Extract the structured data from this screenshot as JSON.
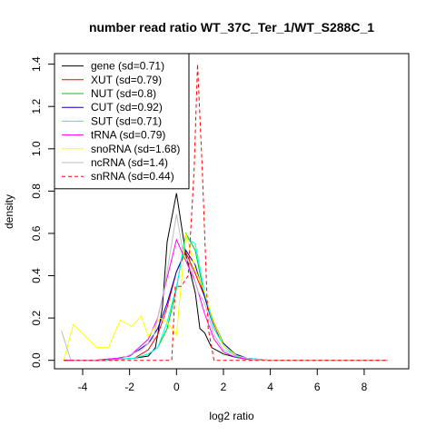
{
  "chart_data": {
    "type": "line",
    "title": "number read ratio WT_37C_Ter_1/WT_S288C_1",
    "xlabel": "log2 ratio",
    "ylabel": "density",
    "xlim": [
      -5.2,
      9.9
    ],
    "ylim": [
      -0.04,
      1.45
    ],
    "xticks": [
      -4,
      -2,
      0,
      2,
      4,
      6,
      8
    ],
    "yticks": [
      0.0,
      0.2,
      0.4,
      0.6,
      0.8,
      1.0,
      1.2,
      1.4
    ],
    "legend_position": "top-left",
    "series": [
      {
        "name": "gene (sd=0.71)",
        "color": "#000000",
        "dash": false,
        "points": [
          [
            -4.8,
            0
          ],
          [
            -4.2,
            0
          ],
          [
            -3.6,
            0
          ],
          [
            -3.0,
            0
          ],
          [
            -2.4,
            0.005
          ],
          [
            -1.8,
            0.01
          ],
          [
            -1.2,
            0.02
          ],
          [
            -0.9,
            0.06
          ],
          [
            -0.6,
            0.25
          ],
          [
            -0.4,
            0.56
          ],
          [
            0,
            0.79
          ],
          [
            0.4,
            0.5
          ],
          [
            0.8,
            0.32
          ],
          [
            1.0,
            0.15
          ],
          [
            1.2,
            0.13
          ],
          [
            1.5,
            0.06
          ],
          [
            2.0,
            0.03
          ],
          [
            2.5,
            0.015
          ],
          [
            3.0,
            0.005
          ],
          [
            4.0,
            0
          ],
          [
            5.0,
            0
          ],
          [
            7.0,
            0
          ],
          [
            9.0,
            0
          ]
        ]
      },
      {
        "name": "XUT (sd=0.79)",
        "color": "#ff0000",
        "dash": false,
        "points": [
          [
            -4.8,
            0
          ],
          [
            -3.5,
            0
          ],
          [
            -2.5,
            0.005
          ],
          [
            -1.8,
            0.01
          ],
          [
            -1.2,
            0.05
          ],
          [
            -0.8,
            0.12
          ],
          [
            -0.4,
            0.25
          ],
          [
            0,
            0.42
          ],
          [
            0.4,
            0.51
          ],
          [
            0.8,
            0.41
          ],
          [
            1.2,
            0.3
          ],
          [
            1.6,
            0.17
          ],
          [
            2.0,
            0.07
          ],
          [
            2.5,
            0.02
          ],
          [
            3.0,
            0.01
          ],
          [
            4.0,
            0
          ],
          [
            5.0,
            0
          ],
          [
            7.0,
            0
          ],
          [
            9.0,
            0
          ]
        ]
      },
      {
        "name": "NUT (sd=0.8)",
        "color": "#00cc00",
        "dash": false,
        "points": [
          [
            -4.8,
            0
          ],
          [
            -3.5,
            0
          ],
          [
            -2.5,
            0.005
          ],
          [
            -1.8,
            0.01
          ],
          [
            -1.2,
            0.03
          ],
          [
            -0.8,
            0.06
          ],
          [
            -0.4,
            0.15
          ],
          [
            0,
            0.34
          ],
          [
            0.4,
            0.6
          ],
          [
            0.8,
            0.52
          ],
          [
            1.2,
            0.3
          ],
          [
            1.6,
            0.18
          ],
          [
            2.0,
            0.08
          ],
          [
            2.5,
            0.03
          ],
          [
            3.0,
            0.01
          ],
          [
            4.0,
            0
          ],
          [
            5.0,
            0
          ],
          [
            7.0,
            0
          ],
          [
            9.0,
            0
          ]
        ]
      },
      {
        "name": "CUT (sd=0.92)",
        "color": "#0000cc",
        "dash": false,
        "points": [
          [
            -4.8,
            0
          ],
          [
            -3.5,
            0
          ],
          [
            -2.5,
            0.01
          ],
          [
            -2.0,
            0.02
          ],
          [
            -1.6,
            0.05
          ],
          [
            -1.2,
            0.08
          ],
          [
            -0.8,
            0.15
          ],
          [
            -0.4,
            0.27
          ],
          [
            0,
            0.42
          ],
          [
            0.4,
            0.52
          ],
          [
            0.8,
            0.45
          ],
          [
            1.2,
            0.3
          ],
          [
            1.6,
            0.15
          ],
          [
            2.0,
            0.08
          ],
          [
            2.5,
            0.03
          ],
          [
            3.0,
            0.01
          ],
          [
            4.0,
            0
          ],
          [
            5.0,
            0
          ],
          [
            7.0,
            0
          ],
          [
            9.0,
            0
          ]
        ]
      },
      {
        "name": "SUT (sd=0.71)",
        "color": "#00ffff",
        "dash": false,
        "points": [
          [
            -4.8,
            0
          ],
          [
            -3.5,
            0
          ],
          [
            -2.5,
            0.005
          ],
          [
            -1.8,
            0.01
          ],
          [
            -1.2,
            0.03
          ],
          [
            -0.8,
            0.06
          ],
          [
            -0.4,
            0.18
          ],
          [
            0,
            0.35
          ],
          [
            0.4,
            0.58
          ],
          [
            0.8,
            0.55
          ],
          [
            1.2,
            0.32
          ],
          [
            1.6,
            0.15
          ],
          [
            2.0,
            0.07
          ],
          [
            2.5,
            0.02
          ],
          [
            3.0,
            0.01
          ],
          [
            4.0,
            0
          ],
          [
            5.0,
            0
          ],
          [
            7.0,
            0
          ],
          [
            9.0,
            0
          ]
        ]
      },
      {
        "name": "tRNA (sd=0.79)",
        "color": "#ff00ff",
        "dash": false,
        "points": [
          [
            -4.8,
            0
          ],
          [
            -3.5,
            0
          ],
          [
            -2.5,
            0.01
          ],
          [
            -2.0,
            0.02
          ],
          [
            -1.6,
            0.06
          ],
          [
            -1.2,
            0.1
          ],
          [
            -0.8,
            0.2
          ],
          [
            -0.4,
            0.39
          ],
          [
            0,
            0.57
          ],
          [
            0.4,
            0.47
          ],
          [
            0.8,
            0.37
          ],
          [
            1.2,
            0.22
          ],
          [
            1.6,
            0.1
          ],
          [
            2.0,
            0.04
          ],
          [
            2.5,
            0.015
          ],
          [
            3.0,
            0.005
          ],
          [
            4.0,
            0
          ],
          [
            5.0,
            0
          ],
          [
            7.0,
            0
          ],
          [
            9.0,
            0
          ]
        ]
      },
      {
        "name": "snoRNA (sd=1.68)",
        "color": "#ffff00",
        "dash": false,
        "points": [
          [
            -4.8,
            0
          ],
          [
            -4.4,
            0.17
          ],
          [
            -3.4,
            0.06
          ],
          [
            -2.9,
            0.06
          ],
          [
            -2.4,
            0.19
          ],
          [
            -1.9,
            0.16
          ],
          [
            -1.5,
            0.21
          ],
          [
            -1.2,
            0.11
          ],
          [
            -0.7,
            0.2
          ],
          [
            -0.4,
            0.18
          ],
          [
            0,
            0.12
          ],
          [
            0.4,
            0.6
          ],
          [
            0.8,
            0.43
          ],
          [
            1.2,
            0.32
          ],
          [
            1.6,
            0.18
          ],
          [
            2.0,
            0.07
          ],
          [
            2.6,
            0.02
          ],
          [
            3.2,
            0.005
          ],
          [
            4.0,
            0
          ],
          [
            5.0,
            0
          ],
          [
            7.0,
            0
          ],
          [
            9.0,
            0
          ]
        ]
      },
      {
        "name": "ncRNA (sd=1.4)",
        "color": "#bebebe",
        "dash": false,
        "points": [
          [
            -4.9,
            0.14
          ],
          [
            -4.5,
            0
          ],
          [
            -3.5,
            0
          ],
          [
            -2.5,
            0
          ],
          [
            -1.5,
            0.05
          ],
          [
            -1.0,
            0.1
          ],
          [
            -0.5,
            0.35
          ],
          [
            0,
            0.69
          ],
          [
            0.3,
            0.5
          ],
          [
            0.6,
            0.45
          ],
          [
            0.9,
            0.33
          ],
          [
            1.2,
            0.27
          ],
          [
            1.6,
            0.12
          ],
          [
            2.0,
            0.05
          ],
          [
            2.6,
            0.02
          ],
          [
            3.2,
            0.005
          ],
          [
            4.0,
            0
          ],
          [
            5.0,
            0
          ],
          [
            7.0,
            0
          ],
          [
            9.0,
            0
          ]
        ]
      },
      {
        "name": "snRNA (sd=0.44)",
        "color": "#ff0000",
        "dash": true,
        "points": [
          [
            -4.8,
            0
          ],
          [
            -3.0,
            0
          ],
          [
            -1.0,
            0
          ],
          [
            -0.2,
            0
          ],
          [
            -0.05,
            0.35
          ],
          [
            0.2,
            0.35
          ],
          [
            0.5,
            0.4
          ],
          [
            0.75,
            0.9
          ],
          [
            0.9,
            1.4
          ],
          [
            1.1,
            0.9
          ],
          [
            1.35,
            0.15
          ],
          [
            1.6,
            0
          ],
          [
            3.0,
            0
          ],
          [
            5.0,
            0
          ],
          [
            7.0,
            0
          ],
          [
            9.0,
            0
          ]
        ]
      }
    ]
  }
}
